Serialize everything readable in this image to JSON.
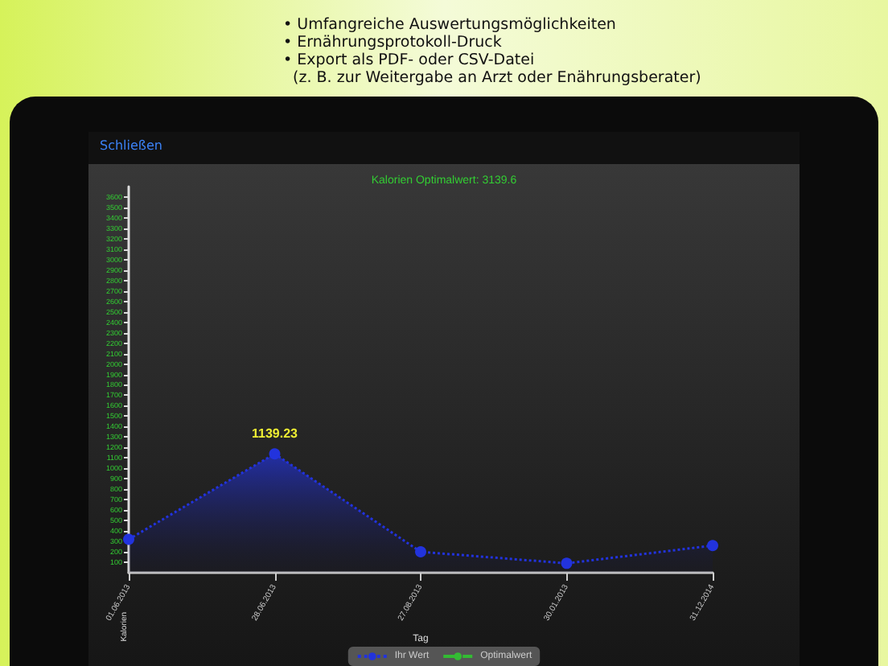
{
  "chart_data": {
    "type": "area",
    "title": "Kalorien Optimalwert: 3139.6",
    "xlabel": "Tag",
    "ylabel": "Kalorien",
    "annotations": [
      "• Umfangreiche Auswertungsmöglichkeiten",
      "• Ernährungsprotokoll-Druck",
      "• Export als PDF- oder CSV-Datei",
      "  (z. B. zur Weitergabe an Arzt oder Enährungsberater)",
      "Schließen"
    ],
    "categories": [
      "01.06.2013",
      "28.06.2013",
      "27.08.2013",
      "30.01.2013",
      "31.12.2014"
    ],
    "series": [
      {
        "name": "Ihr Wert",
        "color": "#2233dd",
        "values": [
          320,
          1139.23,
          200,
          90,
          260
        ],
        "value_labels": [
          null,
          "1139.23",
          null,
          null,
          null
        ],
        "line_style": "dotted",
        "marker": "circle"
      },
      {
        "name": "Optimalwert",
        "color": "#33bb33",
        "type": "line",
        "values": [
          null,
          null,
          null,
          null,
          null
        ],
        "line_style": "dashed",
        "marker": "none"
      }
    ],
    "ylim": [
      0,
      3700
    ],
    "yticks": [
      100,
      200,
      300,
      400,
      500,
      600,
      700,
      800,
      900,
      1000,
      1100,
      1200,
      1300,
      1400,
      1500,
      1600,
      1700,
      1800,
      1900,
      2000,
      2100,
      2200,
      2300,
      2400,
      2500,
      2600,
      2700,
      2800,
      2900,
      3000,
      3100,
      3200,
      3300,
      3400,
      3500,
      3600
    ],
    "grid": false,
    "legend": "bottom"
  }
}
